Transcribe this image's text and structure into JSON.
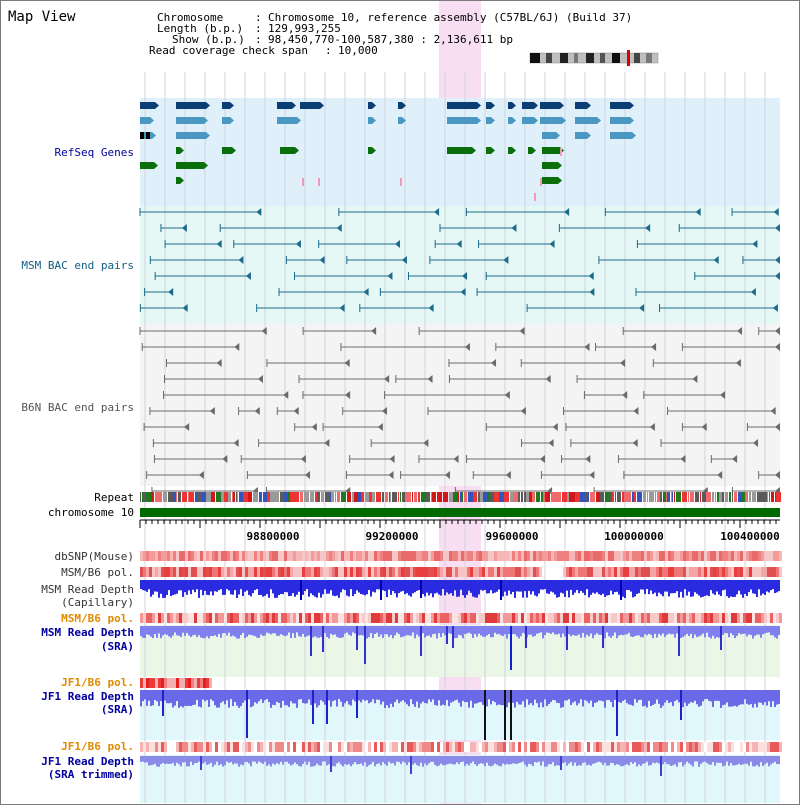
{
  "title": "Map View",
  "header": {
    "chrom_key": "Chromosome",
    "chrom_val": "Chromosome 10, reference assembly (C57BL/6J) (Build 37)",
    "length_key": "Length (b.p.)",
    "length_val": "129,993,255",
    "show_key": "Show (b.p.)",
    "show_val": "98,450,770-100,587,380 : 2,136,611 bp",
    "span_key": "Read coverage check span",
    "span_val": "10,000"
  },
  "tracks": {
    "refseq": "RefSeq Genes",
    "msm_bac": "MSM BAC end pairs",
    "b6n_bac": "B6N BAC end pairs",
    "repeat": "Repeat",
    "chrom": "chromosome 10",
    "dbsnp": "dbSNP(Mouse)",
    "msm_b6_pol_1": "MSM/B6 pol.",
    "msm_rd_cap_1": "MSM Read Depth",
    "msm_rd_cap_2": "(Capillary)",
    "msm_b6_pol_2": "MSM/B6 pol.",
    "msm_rd_sra_1": "MSM Read Depth",
    "msm_rd_sra_2": "(SRA)",
    "jf1_b6_pol_1": "JF1/B6 pol.",
    "jf1_rd_sra_1": "JF1 Read Depth",
    "jf1_rd_sra_2": "(SRA)",
    "jf1_b6_pol_2": "JF1/B6 pol.",
    "jf1_rd_tr_1": "JF1 Read Depth",
    "jf1_rd_tr_2": "(SRA trimmed)"
  },
  "axis": {
    "ticks": [
      "98800000",
      "99200000",
      "99600000",
      "100000000",
      "100400000"
    ]
  },
  "colors": {
    "label_blue": "#0000a0",
    "label_teal": "#106080",
    "label_orange": "#e08a00",
    "highlight": "#f7d8f0"
  }
}
